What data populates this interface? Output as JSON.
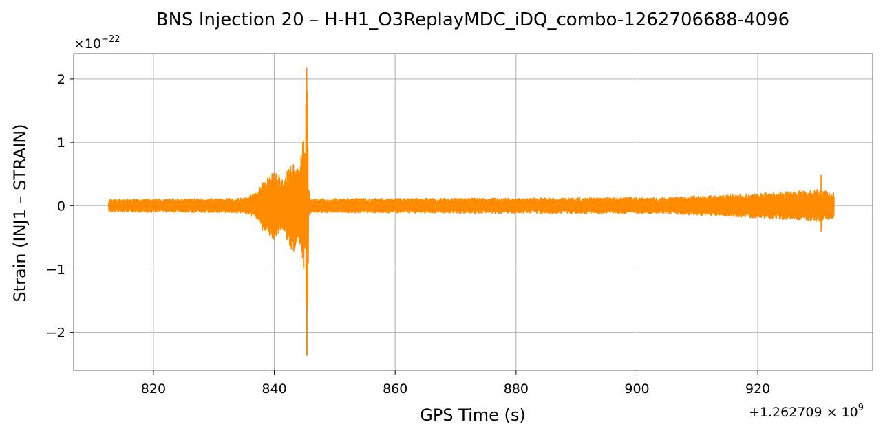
{
  "chart_data": {
    "type": "line",
    "title": "BNS Injection 20 – H-H1_O3ReplayMDC_iDQ_combo-1262706688-4096",
    "xlabel": "GPS Time (s)",
    "ylabel": "Strain (INJ1 – STRAIN)",
    "x_offset_label": {
      "base": "+1.262709 × 10",
      "exp": "9"
    },
    "y_scale_label": {
      "base": "×10",
      "exp": "−22"
    },
    "xlim": [
      806.8,
      939.0
    ],
    "ylim": [
      -2.6,
      2.4
    ],
    "x_ticks": [
      {
        "value": 820,
        "label": "820"
      },
      {
        "value": 840,
        "label": "840"
      },
      {
        "value": 860,
        "label": "860"
      },
      {
        "value": 880,
        "label": "880"
      },
      {
        "value": 900,
        "label": "900"
      },
      {
        "value": 920,
        "label": "920"
      }
    ],
    "y_ticks": [
      {
        "value": -2,
        "label": "−2"
      },
      {
        "value": -1,
        "label": "−1"
      },
      {
        "value": 0,
        "label": "0"
      },
      {
        "value": 1,
        "label": "1"
      },
      {
        "value": 2,
        "label": "2"
      }
    ],
    "grid": true,
    "series": [
      {
        "name": "",
        "color": "#ff8c00",
        "x_range": [
          812.6,
          932.6
        ],
        "peak_max": {
          "x": 845.4,
          "y": 2.17
        },
        "peak_min": {
          "x": 845.4,
          "y": -2.36
        },
        "envelope": [
          {
            "x": 812.6,
            "y": 0.1
          },
          {
            "x": 830.0,
            "y": 0.11
          },
          {
            "x": 835.0,
            "y": 0.12
          },
          {
            "x": 837.0,
            "y": 0.2
          },
          {
            "x": 838.0,
            "y": 0.38
          },
          {
            "x": 840.0,
            "y": 0.55
          },
          {
            "x": 841.5,
            "y": 0.4
          },
          {
            "x": 843.0,
            "y": 0.75
          },
          {
            "x": 844.0,
            "y": 0.6
          },
          {
            "x": 844.8,
            "y": 1.05
          },
          {
            "x": 845.6,
            "y": 0.3
          },
          {
            "x": 846.0,
            "y": 0.11
          },
          {
            "x": 880.0,
            "y": 0.12
          },
          {
            "x": 905.0,
            "y": 0.13
          },
          {
            "x": 915.0,
            "y": 0.17
          },
          {
            "x": 925.0,
            "y": 0.22
          },
          {
            "x": 930.0,
            "y": 0.26
          },
          {
            "x": 932.6,
            "y": 0.2
          }
        ],
        "spikes": [
          {
            "x": 930.5,
            "y": 0.48
          },
          {
            "x": 930.5,
            "y": -0.4
          }
        ]
      }
    ]
  }
}
